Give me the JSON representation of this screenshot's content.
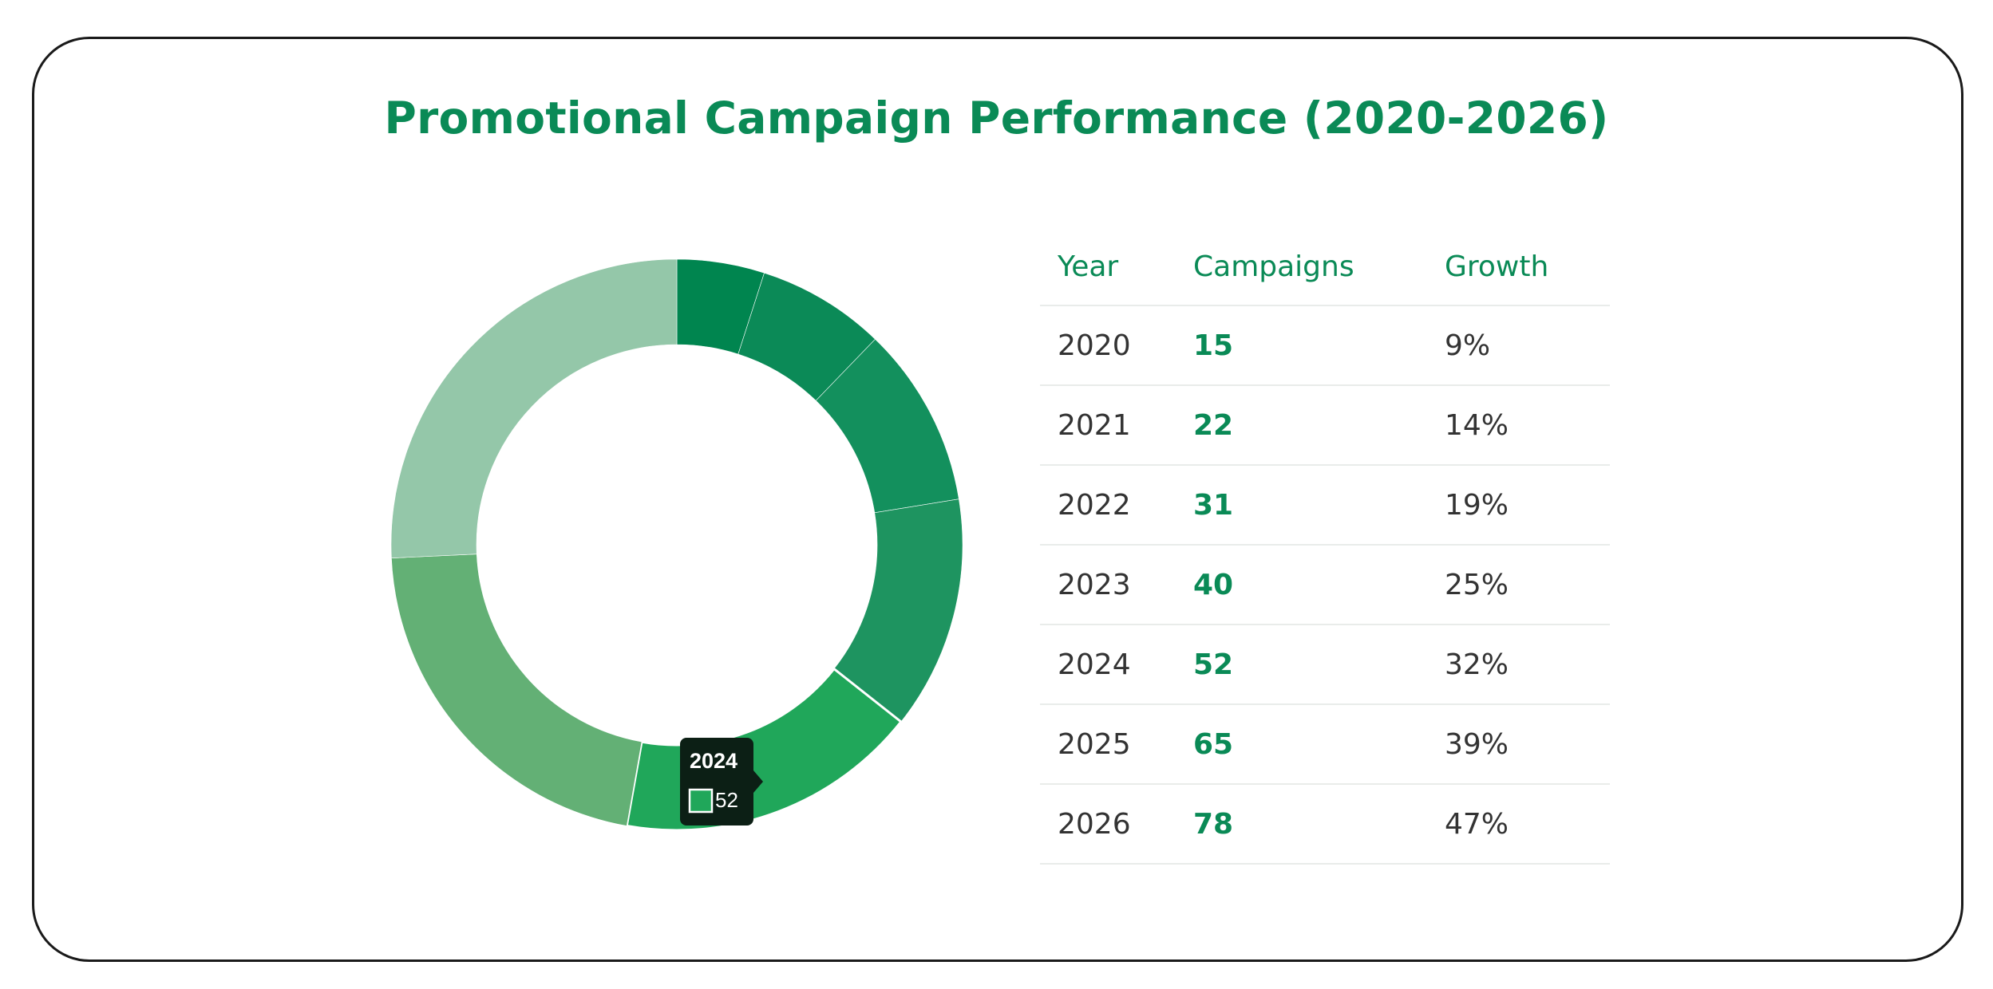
{
  "title": "Promotional Campaign Performance (2020-2026)",
  "colors": {
    "accent": "#0a8a56",
    "slices": [
      "#00854f",
      "#0b8a57",
      "#13905d",
      "#1e9460",
      "#20a75a",
      "#63b075",
      "#94c7a9"
    ]
  },
  "chart_data": {
    "type": "pie",
    "variant": "donut",
    "title": "Promotional Campaign Performance (2020-2026)",
    "categories": [
      "2020",
      "2021",
      "2022",
      "2023",
      "2024",
      "2025",
      "2026"
    ],
    "values": [
      15,
      22,
      31,
      40,
      52,
      65,
      78
    ],
    "tooltip": {
      "label": "2024",
      "value": "52"
    }
  },
  "table": {
    "headers": {
      "year": "Year",
      "campaigns": "Campaigns",
      "growth": "Growth"
    },
    "rows": [
      {
        "year": "2020",
        "campaigns": "15",
        "growth": "9%"
      },
      {
        "year": "2021",
        "campaigns": "22",
        "growth": "14%"
      },
      {
        "year": "2022",
        "campaigns": "31",
        "growth": "19%"
      },
      {
        "year": "2023",
        "campaigns": "40",
        "growth": "25%"
      },
      {
        "year": "2024",
        "campaigns": "52",
        "growth": "32%"
      },
      {
        "year": "2025",
        "campaigns": "65",
        "growth": "39%"
      },
      {
        "year": "2026",
        "campaigns": "78",
        "growth": "47%"
      }
    ]
  }
}
